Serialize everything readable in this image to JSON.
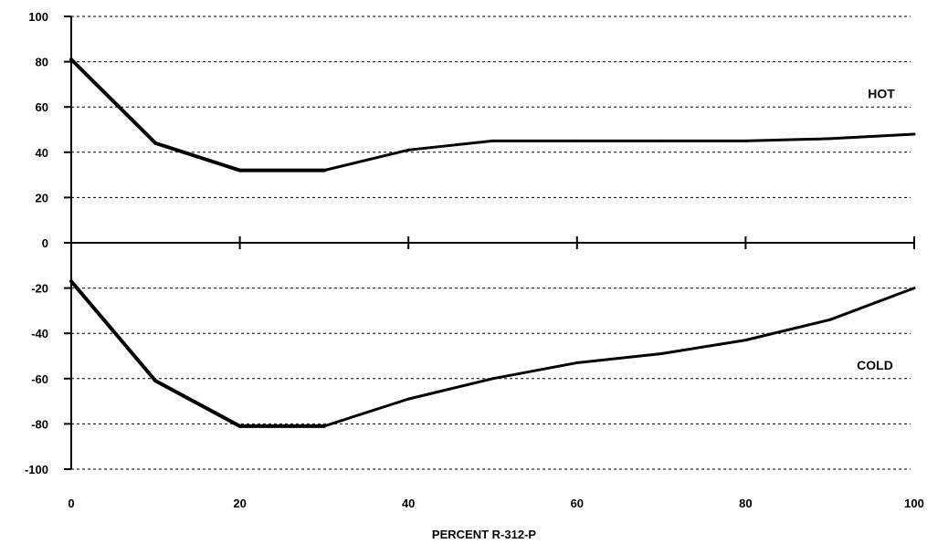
{
  "chart_data": {
    "type": "line",
    "xlabel": "PERCENT R-312-P",
    "ylabel": "",
    "xlim": [
      0,
      100
    ],
    "ylim": [
      -100,
      100
    ],
    "x_ticks": [
      0,
      20,
      40,
      60,
      80,
      100
    ],
    "y_ticks": [
      100,
      80,
      60,
      40,
      20,
      0,
      -20,
      -40,
      -60,
      -80,
      -100
    ],
    "grid": true,
    "series": [
      {
        "name": "HOT",
        "x": [
          0,
          10,
          20,
          30,
          40,
          50,
          60,
          70,
          80,
          90,
          100
        ],
        "values": [
          81,
          44,
          32,
          32,
          41,
          45,
          45,
          45,
          45,
          46,
          48
        ]
      },
      {
        "name": "COLD",
        "x": [
          0,
          10,
          20,
          30,
          40,
          50,
          60,
          70,
          80,
          90,
          100
        ],
        "values": [
          -17,
          -61,
          -81,
          -81,
          -69,
          -60,
          -53,
          -49,
          -43,
          -34,
          -20
        ]
      }
    ],
    "colors": {
      "line": "#000000",
      "grid": "#000000"
    }
  }
}
